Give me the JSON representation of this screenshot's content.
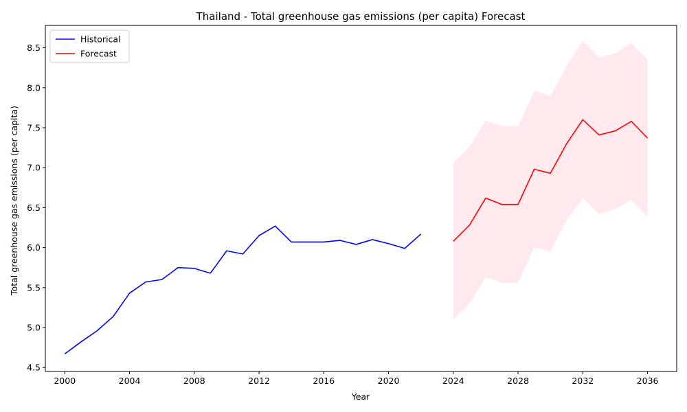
{
  "chart_data": {
    "type": "line",
    "title": "Thailand - Total greenhouse gas emissions (per capita) Forecast",
    "xlabel": "Year",
    "ylabel": "Total greenhouse gas emissions (per capita)",
    "xlim": [
      1998.8,
      2037.8
    ],
    "ylim": [
      4.45,
      8.78
    ],
    "x_ticks": [
      2000,
      2004,
      2008,
      2012,
      2016,
      2020,
      2024,
      2028,
      2032,
      2036
    ],
    "y_ticks": [
      4.5,
      5.0,
      5.5,
      6.0,
      6.5,
      7.0,
      7.5,
      8.0,
      8.5
    ],
    "y_tick_labels": [
      "4.5",
      "5.0",
      "5.5",
      "6.0",
      "6.5",
      "7.0",
      "7.5",
      "8.0",
      "8.5"
    ],
    "grid": false,
    "legend_position": "upper-left",
    "series": [
      {
        "name": "Historical",
        "color": "#0000ff",
        "x": [
          2000,
          2001,
          2002,
          2003,
          2004,
          2005,
          2006,
          2007,
          2008,
          2009,
          2010,
          2011,
          2012,
          2013,
          2014,
          2015,
          2016,
          2017,
          2018,
          2019,
          2020,
          2021,
          2022
        ],
        "values": [
          4.67,
          4.82,
          4.96,
          5.14,
          5.43,
          5.57,
          5.6,
          5.75,
          5.74,
          5.68,
          5.96,
          5.92,
          6.15,
          6.27,
          6.07,
          6.07,
          6.07,
          6.09,
          6.04,
          6.1,
          6.05,
          5.99,
          6.17
        ]
      },
      {
        "name": "Forecast",
        "color": "#ff0000",
        "x": [
          2024,
          2025,
          2026,
          2027,
          2028,
          2029,
          2030,
          2031,
          2032,
          2033,
          2034,
          2035,
          2036
        ],
        "values": [
          6.08,
          6.28,
          6.62,
          6.54,
          6.54,
          6.98,
          6.93,
          7.3,
          7.6,
          7.41,
          7.46,
          7.58,
          7.37
        ]
      }
    ],
    "confidence_band": {
      "color": "#ffc0cb",
      "opacity": 0.35,
      "x": [
        2024,
        2025,
        2026,
        2027,
        2028,
        2029,
        2030,
        2031,
        2032,
        2033,
        2034,
        2035,
        2036
      ],
      "lower": [
        5.1,
        5.3,
        5.63,
        5.56,
        5.56,
        6.0,
        5.95,
        6.34,
        6.62,
        6.42,
        6.48,
        6.6,
        6.39
      ],
      "upper": [
        7.06,
        7.26,
        7.59,
        7.52,
        7.52,
        7.96,
        7.9,
        8.27,
        8.59,
        8.38,
        8.43,
        8.56,
        8.35
      ]
    }
  }
}
